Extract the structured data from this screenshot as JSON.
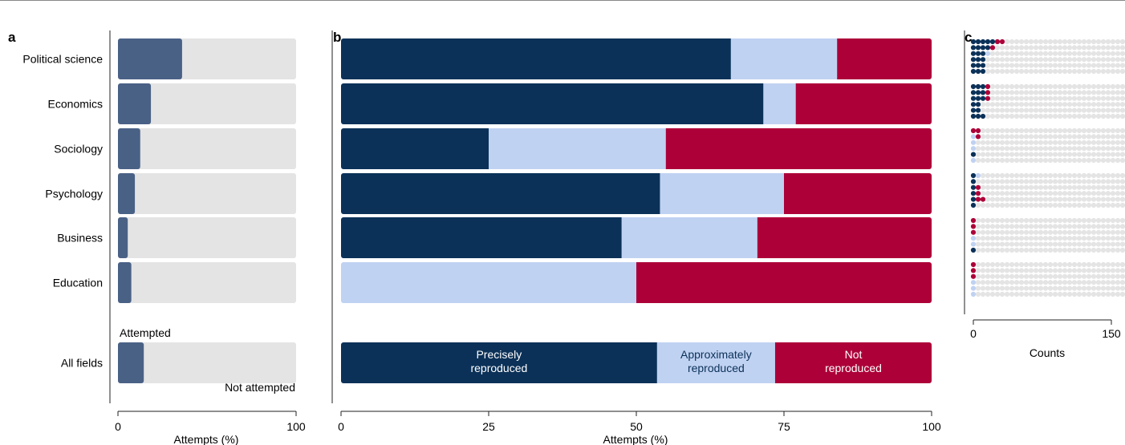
{
  "colors": {
    "precise": "#0b3158",
    "approx": "#c0d2f2",
    "not": "#ad0039",
    "attempted": "#4a6186",
    "not_attempted": "#e4e4e4",
    "dot_empty": "#e4e4e4"
  },
  "chart_data": [
    {
      "panel": "a",
      "type": "bar",
      "orientation": "horizontal",
      "stacked": true,
      "categories": [
        "Political science",
        "Economics",
        "Sociology",
        "Psychology",
        "Business",
        "Education",
        "All fields"
      ],
      "series": [
        {
          "name": "Attempted",
          "values": [
            36,
            18.5,
            12.5,
            9.5,
            5.5,
            7.5,
            14.5
          ]
        },
        {
          "name": "Not attempted",
          "values": [
            64,
            81.5,
            87.5,
            90.5,
            94.5,
            92.5,
            85.5
          ]
        }
      ],
      "xlabel": "Attempts (%)",
      "xlim": [
        0,
        100
      ],
      "xticks": [
        0,
        100
      ],
      "grid": false
    },
    {
      "panel": "b",
      "type": "bar",
      "orientation": "horizontal",
      "stacked": true,
      "categories": [
        "Political science",
        "Economics",
        "Sociology",
        "Psychology",
        "Business",
        "Education",
        "All fields"
      ],
      "series": [
        {
          "name": "Precisely reproduced",
          "label_lines": [
            "Precisely",
            "reproduced"
          ],
          "values": [
            66,
            71.5,
            25,
            54,
            47.5,
            0,
            53.5
          ]
        },
        {
          "name": "Approximately reproduced",
          "label_lines": [
            "Approximately",
            "reproduced"
          ],
          "values": [
            18,
            5.5,
            30,
            21,
            23,
            50,
            20
          ]
        },
        {
          "name": "Not reproduced",
          "label_lines": [
            "Not",
            "reproduced"
          ],
          "values": [
            16,
            23,
            45,
            25,
            29.5,
            50,
            26.5
          ]
        }
      ],
      "xlabel": "Attempts (%)",
      "xlim": [
        0,
        100
      ],
      "xticks": [
        0,
        25,
        50,
        75,
        100
      ],
      "grid": false
    },
    {
      "panel": "c",
      "type": "scatter",
      "subtype": "dot-plot",
      "xlabel": "Counts",
      "xlim": [
        0,
        150
      ],
      "xticks": [
        0,
        150
      ],
      "groups": [
        {
          "category": "Political science",
          "rows": [
            [
              5,
              0,
              2,
              69
            ],
            [
              4,
              0,
              1,
              71
            ],
            [
              3,
              1,
              0,
              72
            ],
            [
              3,
              0,
              0,
              73
            ],
            [
              3,
              0,
              0,
              73
            ],
            [
              3,
              0,
              0,
              75
            ]
          ]
        },
        {
          "category": "Economics",
          "rows": [
            [
              3,
              0,
              1,
              82
            ],
            [
              3,
              0,
              1,
              82
            ],
            [
              3,
              0,
              1,
              82
            ],
            [
              2,
              0,
              0,
              84
            ],
            [
              2,
              0,
              0,
              84
            ],
            [
              3,
              0,
              0,
              83
            ]
          ]
        },
        {
          "category": "Sociology",
          "rows": [
            [
              0,
              0,
              2,
              61
            ],
            [
              0,
              1,
              1,
              61
            ],
            [
              0,
              1,
              0,
              62
            ],
            [
              0,
              1,
              0,
              62
            ],
            [
              1,
              0,
              0,
              61
            ],
            [
              0,
              1,
              0,
              62
            ]
          ]
        },
        {
          "category": "Psychology",
          "rows": [
            [
              1,
              1,
              0,
              116
            ],
            [
              1,
              0,
              0,
              117
            ],
            [
              1,
              0,
              1,
              116
            ],
            [
              1,
              0,
              1,
              116
            ],
            [
              1,
              0,
              2,
              117
            ],
            [
              1,
              0,
              0,
              120
            ]
          ]
        },
        {
          "category": "Business",
          "rows": [
            [
              0,
              0,
              1,
              99
            ],
            [
              0,
              0,
              1,
              99
            ],
            [
              0,
              0,
              1,
              99
            ],
            [
              0,
              1,
              0,
              97
            ],
            [
              0,
              1,
              0,
              96
            ],
            [
              1,
              0,
              0,
              96
            ]
          ]
        },
        {
          "category": "Education",
          "rows": [
            [
              0,
              0,
              1,
              57
            ],
            [
              0,
              0,
              1,
              57
            ],
            [
              0,
              0,
              1,
              57
            ],
            [
              0,
              1,
              0,
              57
            ],
            [
              0,
              1,
              0,
              55
            ],
            [
              0,
              1,
              0,
              55
            ]
          ]
        }
      ]
    }
  ],
  "panel_labels": {
    "a": "a",
    "b": "b",
    "c": "c"
  },
  "legend_a": {
    "attempted": "Attempted",
    "not_attempted": "Not attempted"
  },
  "axis_labels": {
    "a_x": "Attempts (%)",
    "b_x": "Attempts (%)",
    "c_x": "Counts"
  }
}
